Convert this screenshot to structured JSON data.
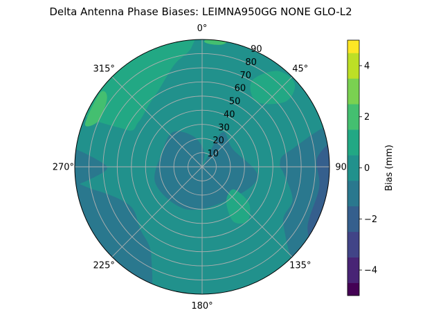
{
  "chart_data": {
    "type": "polar-contour",
    "title": "Delta Antenna Phase Biases: LEIMNA950GG     NONE GLO-L2",
    "theta_zero": "top",
    "theta_direction": "clockwise",
    "theta_tick_labels": [
      {
        "deg": 0,
        "label": "0°"
      },
      {
        "deg": 45,
        "label": "45°"
      },
      {
        "deg": 90,
        "label": "90"
      },
      {
        "deg": 135,
        "label": "135°"
      },
      {
        "deg": 180,
        "label": "180°"
      },
      {
        "deg": 225,
        "label": "225°"
      },
      {
        "deg": 270,
        "label": "270°"
      },
      {
        "deg": 315,
        "label": "315°"
      }
    ],
    "radial_ticks": [
      10,
      20,
      30,
      40,
      50,
      60,
      70,
      80,
      90
    ],
    "radial_label_angle_deg": 22.5,
    "rlim": [
      0,
      90
    ],
    "grid": true,
    "colorbar": {
      "label": "Bias (mm)",
      "vmin": -5,
      "vmax": 5,
      "ticks": [
        -4,
        -2,
        0,
        2,
        4
      ],
      "tick_labels": [
        "−4",
        "−2",
        "0",
        "2",
        "4"
      ],
      "levels": [
        {
          "from": -5.0,
          "to": -4.5,
          "color": "#440154"
        },
        {
          "from": -4.5,
          "to": -3.5,
          "color": "#482475"
        },
        {
          "from": -3.5,
          "to": -2.5,
          "color": "#414487"
        },
        {
          "from": -2.5,
          "to": -1.5,
          "color": "#355f8d"
        },
        {
          "from": -1.5,
          "to": -0.5,
          "color": "#2a788e"
        },
        {
          "from": -0.5,
          "to": 0.5,
          "color": "#21918c"
        },
        {
          "from": 0.5,
          "to": 1.5,
          "color": "#22a884"
        },
        {
          "from": 1.5,
          "to": 2.5,
          "color": "#44bf70"
        },
        {
          "from": 2.5,
          "to": 3.5,
          "color": "#7ad151"
        },
        {
          "from": 3.5,
          "to": 4.5,
          "color": "#bddf26"
        },
        {
          "from": 4.5,
          "to": 5.0,
          "color": "#fde725"
        }
      ]
    },
    "field": {
      "background_level_mm": 0,
      "regions": [
        {
          "level_mm": -1,
          "points": [
            [
              0,
              0
            ],
            [
              30,
              28
            ],
            [
              60,
              25
            ],
            [
              100,
              40
            ],
            [
              140,
              30
            ],
            [
              200,
              32
            ],
            [
              250,
              35
            ],
            [
              290,
              30
            ],
            [
              320,
              32
            ],
            [
              345,
              22
            ],
            [
              10,
              10
            ]
          ]
        },
        {
          "level_mm": -1,
          "points": [
            [
              75,
              90
            ],
            [
              80,
              62
            ],
            [
              88,
              55
            ],
            [
              95,
              58
            ],
            [
              110,
              68
            ],
            [
              125,
              70
            ],
            [
              135,
              90
            ]
          ]
        },
        {
          "level_mm": -2,
          "points": [
            [
              80,
              90
            ],
            [
              85,
              82
            ],
            [
              100,
              84
            ],
            [
              120,
              86
            ],
            [
              125,
              90
            ]
          ]
        },
        {
          "level_mm": -1,
          "points": [
            [
              205,
              90
            ],
            [
              210,
              72
            ],
            [
              225,
              62
            ],
            [
              242,
              58
            ],
            [
              258,
              78
            ],
            [
              262,
              90
            ]
          ]
        },
        {
          "level_mm": -1,
          "points": [
            [
              262,
              90
            ],
            [
              266,
              72
            ],
            [
              272,
              70
            ],
            [
              278,
              90
            ]
          ]
        },
        {
          "level_mm": 0,
          "points": [
            [
              25,
              40
            ],
            [
              50,
              30
            ],
            [
              60,
              40
            ],
            [
              50,
              52
            ],
            [
              28,
              48
            ]
          ]
        },
        {
          "level_mm": 0,
          "points": [
            [
              330,
              55
            ],
            [
              348,
              50
            ],
            [
              358,
              58
            ],
            [
              345,
              62
            ]
          ]
        },
        {
          "level_mm": 1,
          "points": [
            [
              40,
              60
            ],
            [
              52,
              75
            ],
            [
              48,
              88
            ],
            [
              38,
              86
            ],
            [
              30,
              70
            ]
          ]
        },
        {
          "level_mm": 1,
          "points": [
            [
              125,
              28
            ],
            [
              138,
              27
            ],
            [
              148,
              33
            ],
            [
              150,
              45
            ],
            [
              140,
              50
            ],
            [
              128,
              42
            ]
          ]
        },
        {
          "level_mm": 1,
          "points": [
            [
              298,
              90
            ],
            [
              296,
              60
            ],
            [
              305,
              55
            ],
            [
              320,
              58
            ],
            [
              330,
              62
            ],
            [
              345,
              75
            ],
            [
              355,
              85
            ],
            [
              355,
              90
            ]
          ]
        },
        {
          "level_mm": 2,
          "points": [
            [
              290,
              88
            ],
            [
              294,
              80
            ],
            [
              306,
              83
            ],
            [
              306,
              89
            ]
          ]
        },
        {
          "level_mm": 2,
          "points": [
            [
              1,
              89
            ],
            [
              10,
              88
            ],
            [
              14,
              90
            ]
          ]
        }
      ]
    }
  }
}
